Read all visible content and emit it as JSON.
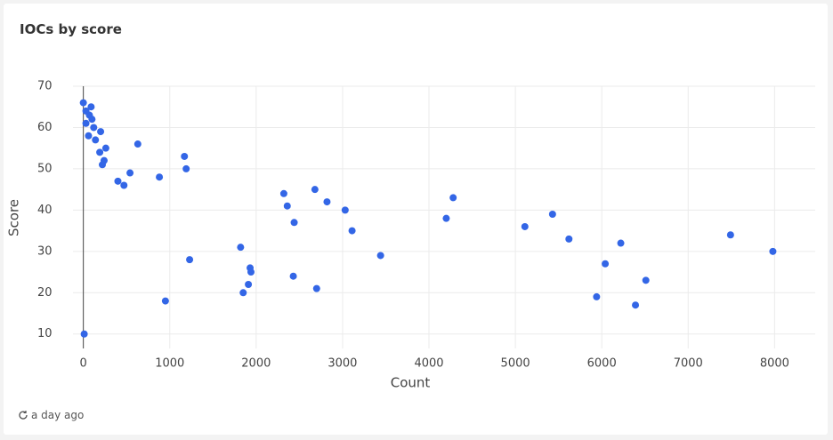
{
  "chart_data": {
    "type": "scatter",
    "title": "IOCs by score",
    "xlabel": "Count",
    "ylabel": "Score",
    "footer": "a day ago",
    "color": "#3366e6",
    "grid": true,
    "xlim": [
      -120,
      8470
    ],
    "ylim": [
      6.5,
      70
    ],
    "xticks": [
      0,
      1000,
      2000,
      3000,
      4000,
      5000,
      6000,
      7000,
      8000
    ],
    "yticks": [
      10,
      20,
      30,
      40,
      50,
      60,
      70
    ],
    "series": [
      {
        "name": "Score",
        "color": "#3366e6",
        "x": [
          0,
          30,
          70,
          90,
          100,
          30,
          120,
          60,
          140,
          200,
          260,
          190,
          240,
          220,
          540,
          400,
          470,
          630,
          880,
          1170,
          1190,
          1230,
          950,
          10,
          1820,
          1930,
          1940,
          1910,
          1850,
          2320,
          2360,
          2440,
          2430,
          2680,
          2700,
          2820,
          3030,
          3110,
          3440,
          4200,
          4280,
          5110,
          5430,
          5620,
          5940,
          6040,
          6220,
          6390,
          6510,
          7490,
          7980
        ],
        "values": [
          66,
          64,
          63,
          65,
          62,
          61,
          60,
          58,
          57,
          59,
          55,
          54,
          52,
          51,
          49,
          47,
          46,
          56,
          48,
          53,
          50,
          28,
          18,
          10,
          31,
          26,
          25,
          22,
          20,
          44,
          41,
          37,
          24,
          45,
          21,
          42,
          40,
          35,
          29,
          38,
          43,
          36,
          39,
          33,
          19,
          27,
          32,
          17,
          23,
          34,
          30
        ]
      }
    ]
  }
}
